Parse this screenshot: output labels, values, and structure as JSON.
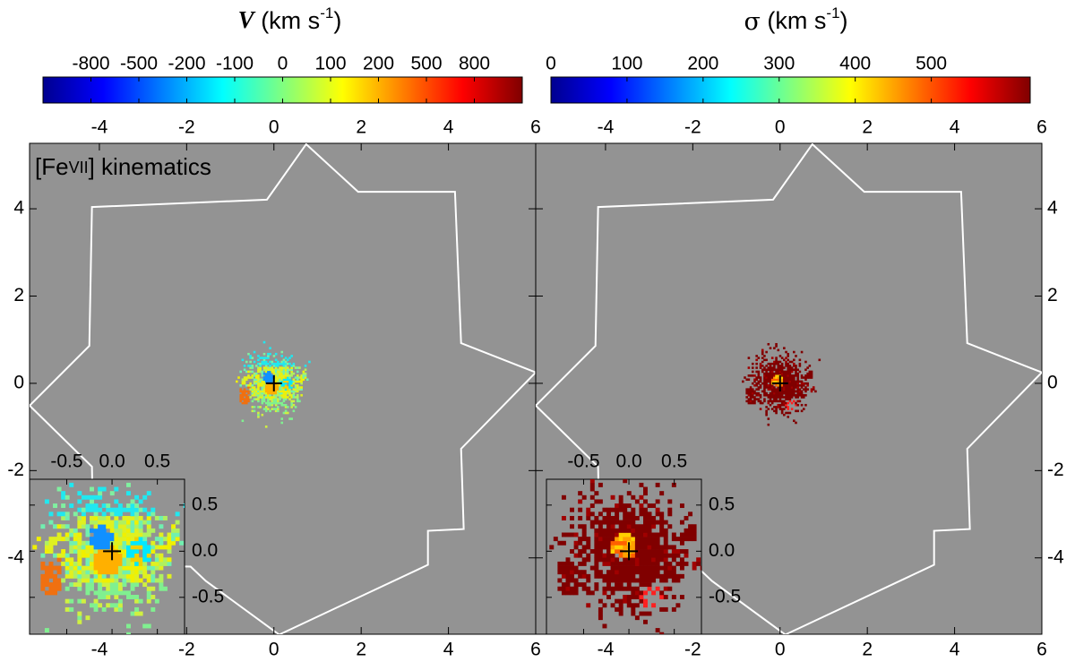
{
  "chart_data": [
    {
      "type": "image",
      "title": [
        "V",
        " (km s",
        "-1",
        ")"
      ],
      "annotation": [
        "[Fe",
        "VII",
        "] kinematics"
      ],
      "colorbar": {
        "ticks": [
          -800,
          -500,
          -200,
          -100,
          0,
          100,
          200,
          500,
          800
        ]
      },
      "xlim": [
        -5.6,
        6
      ],
      "ylim": [
        -5.75,
        5.5
      ],
      "xticks": [
        -4,
        -2,
        0,
        2,
        4,
        6
      ],
      "yticks": [
        -4,
        -2,
        0,
        2,
        4
      ],
      "footprint": {
        "x": [
          0.74,
          1.93,
          4.15,
          4.29,
          6.0,
          4.29,
          4.35,
          3.53,
          3.53,
          0.12,
          -1.56,
          -1.91,
          -4.13,
          -4.17,
          -5.6,
          -4.23,
          -4.17,
          -0.16
        ],
        "y": [
          5.48,
          4.39,
          4.39,
          0.92,
          0.25,
          -1.5,
          -3.34,
          -3.38,
          -4.16,
          -5.76,
          -4.53,
          -4.2,
          -4.16,
          -1.91,
          -0.51,
          0.86,
          4.04,
          4.21
        ]
      },
      "inset": {
        "xlim": [
          -0.91,
          0.8
        ],
        "ylim": [
          -0.9,
          0.78
        ],
        "xticks": [
          -0.5,
          {
            "value": 0,
            "label": "0.0"
          },
          0.5
        ],
        "yticks": [
          0.5,
          {
            "value": 0,
            "label": "0.0"
          },
          -0.5
        ]
      }
    },
    {
      "type": "image",
      "title": [
        "σ",
        " (km s",
        "-1",
        ")"
      ],
      "colorbar": {
        "lim": [
          0,
          630
        ],
        "ticks": [
          0,
          100,
          200,
          300,
          400,
          500
        ]
      },
      "xlim": [
        -5.6,
        6
      ],
      "ylim": [
        -5.75,
        5.5
      ],
      "xticks": [
        -4,
        -2,
        0,
        2,
        4,
        6
      ],
      "yticks": [
        -4,
        -2,
        0,
        2,
        4
      ],
      "footprint": {
        "x": [
          0.74,
          1.93,
          4.15,
          4.29,
          6.0,
          4.29,
          4.35,
          3.53,
          3.53,
          0.12,
          -1.56,
          -1.91,
          -4.13,
          -4.17,
          -5.6,
          -4.23,
          -4.17,
          -0.16
        ],
        "y": [
          5.48,
          4.39,
          4.39,
          0.92,
          0.25,
          -1.5,
          -3.34,
          -3.38,
          -4.16,
          -5.76,
          -4.53,
          -4.2,
          -4.16,
          -1.91,
          -0.51,
          0.86,
          4.04,
          4.21
        ]
      },
      "inset": {
        "xlim": [
          -0.91,
          0.8
        ],
        "ylim": [
          -0.9,
          0.78
        ],
        "xticks": [
          -0.5,
          {
            "value": 0,
            "label": "0.0"
          },
          0.5
        ],
        "yticks": [
          0.5,
          {
            "value": 0,
            "label": "0.0"
          },
          -0.5
        ]
      }
    }
  ]
}
